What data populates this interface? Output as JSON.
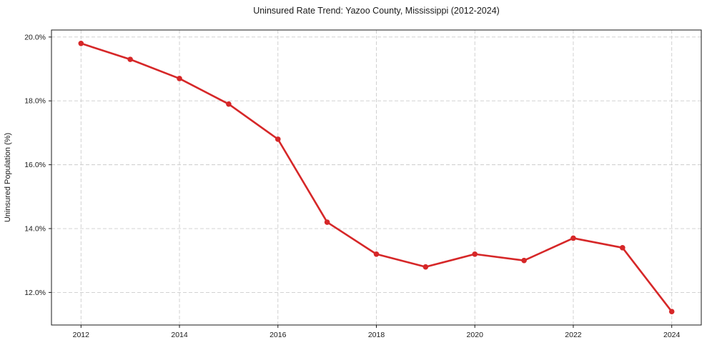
{
  "chart_data": {
    "type": "line",
    "title": "Uninsured Rate Trend: Yazoo County, Mississippi (2012-2024)",
    "xlabel": "",
    "ylabel": "Uninsured Population (%)",
    "x": [
      2012,
      2013,
      2014,
      2015,
      2016,
      2017,
      2018,
      2019,
      2020,
      2021,
      2022,
      2023,
      2024
    ],
    "values": [
      19.8,
      19.3,
      18.7,
      17.9,
      16.8,
      14.2,
      13.2,
      12.8,
      13.2,
      13.0,
      13.7,
      13.4,
      11.4
    ],
    "x_ticks": [
      2012,
      2014,
      2016,
      2018,
      2020,
      2022,
      2024
    ],
    "x_tick_labels": [
      "2012",
      "2014",
      "2016",
      "2018",
      "2020",
      "2022",
      "2024"
    ],
    "y_ticks": [
      12,
      14,
      16,
      18,
      20
    ],
    "y_tick_labels": [
      "12.0%",
      "14.0%",
      "16.0%",
      "18.0%",
      "20.0%"
    ],
    "xlim": [
      2011.4,
      2024.6
    ],
    "ylim": [
      10.98,
      20.22
    ],
    "grid": true,
    "legend": false,
    "marker": "circle",
    "line_color": "#d62728",
    "grid_color": "#cccccc",
    "spine_color": "#1a1a1a",
    "text_color": "#1a1a1a",
    "background_color": "#ffffff"
  }
}
